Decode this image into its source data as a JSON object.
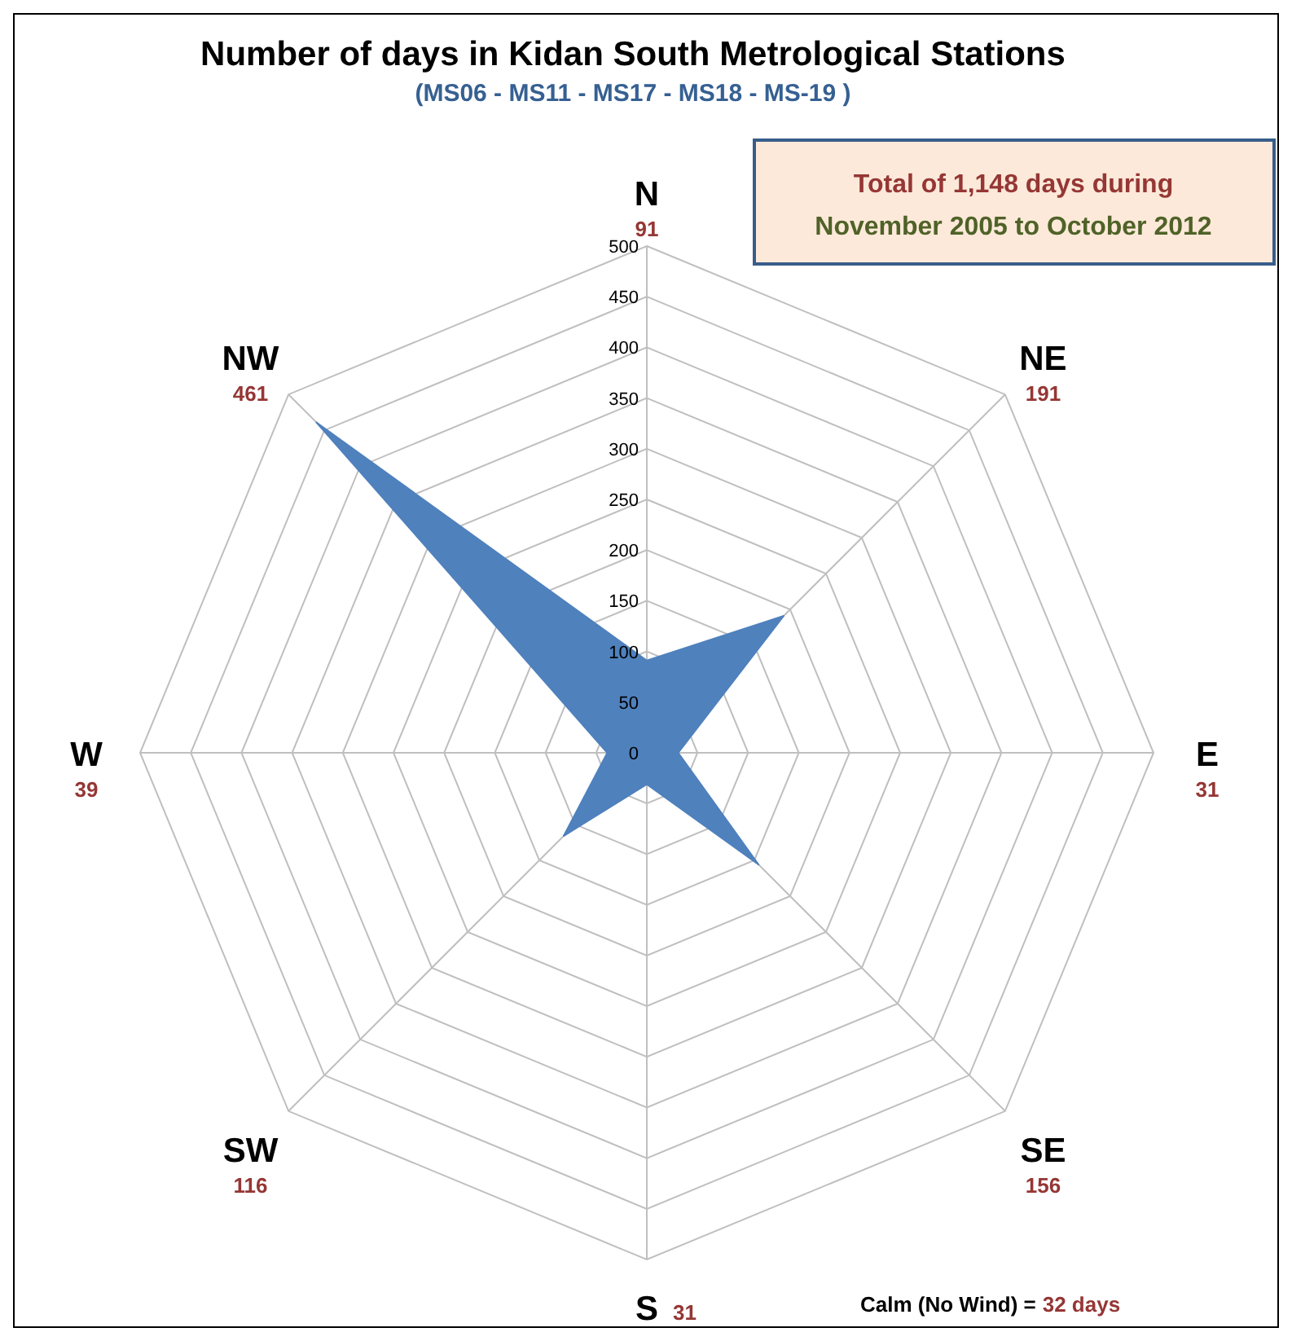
{
  "chart_data": {
    "type": "radar",
    "title": "Number of days in Kidan South Metrological Stations",
    "subtitle": "(MS06 - MS11 - MS17 - MS18 - MS-19 )",
    "categories": [
      "N\n91",
      "NE\n191",
      "E\n31",
      "SE\n156",
      "S\n31",
      "SW\n116",
      "W\n39",
      "NW\n461"
    ],
    "series": [
      {
        "color": "#4f81bd",
        "values": [
          91,
          191,
          31,
          156,
          31,
          116,
          39,
          461
        ]
      }
    ],
    "ylim": [
      0,
      500
    ],
    "yticks": [
      0,
      50,
      100,
      150,
      200,
      250,
      300,
      350,
      400,
      450,
      500
    ],
    "grid": true,
    "annotations": [
      "Total of 1,148 days during",
      "November 2005 to October 2012",
      "Calm (No Wind) =",
      "32 days"
    ]
  }
}
